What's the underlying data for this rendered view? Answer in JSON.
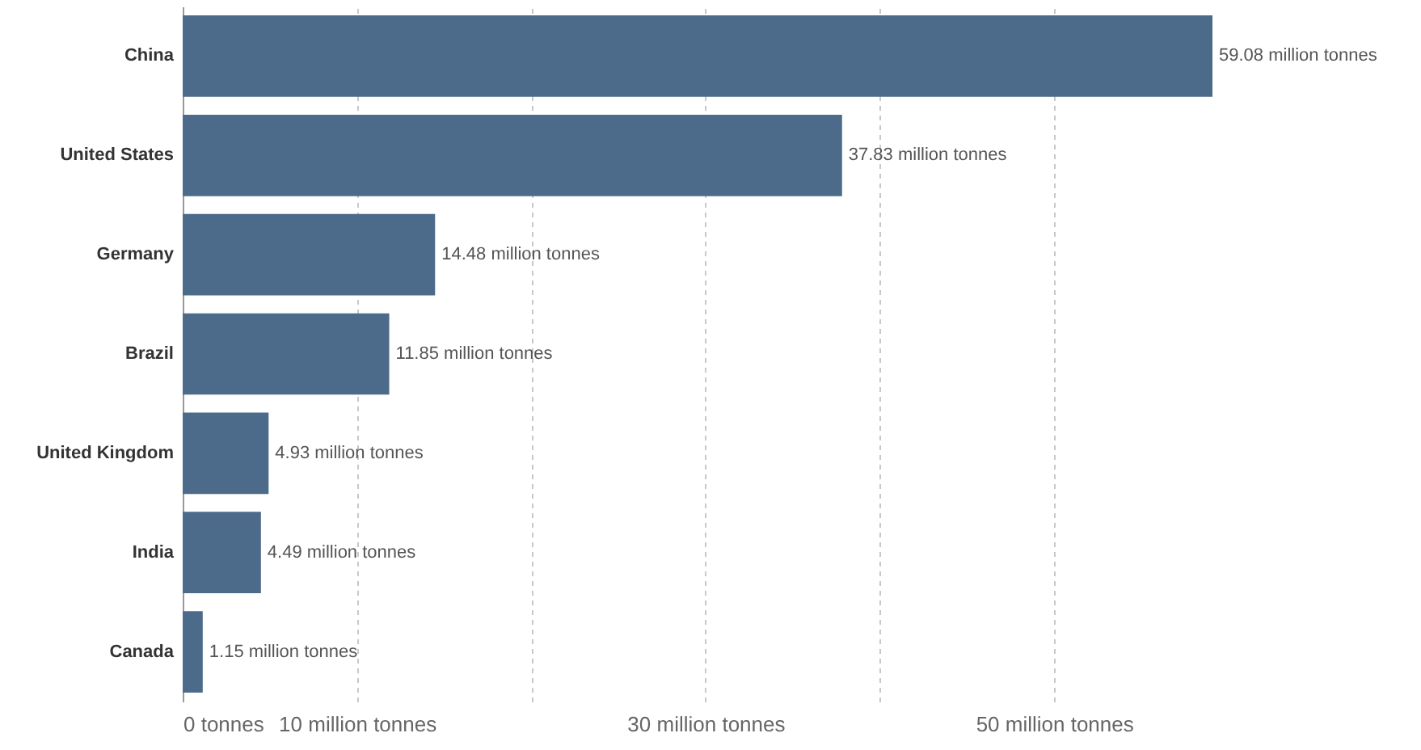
{
  "chart_data": {
    "type": "bar",
    "orientation": "horizontal",
    "categories": [
      "China",
      "United States",
      "Germany",
      "Brazil",
      "United Kingdom",
      "India",
      "Canada"
    ],
    "values": [
      59.08,
      37.83,
      14.48,
      11.85,
      4.93,
      4.49,
      1.15
    ],
    "value_labels": [
      "59.08 million tonnes",
      "37.83 million tonnes",
      "14.48 million tonnes",
      "11.85 million tonnes",
      "4.93 million tonnes",
      "4.49 million tonnes",
      "1.15 million tonnes"
    ],
    "color": "#4c6a8a",
    "xlim": [
      0,
      59.08
    ],
    "xticks": [
      {
        "value": 0,
        "label": "0 tonnes"
      },
      {
        "value": 10,
        "label": "10 million tonnes"
      },
      {
        "value": 20,
        "label": null
      },
      {
        "value": 30,
        "label": "30 million tonnes"
      },
      {
        "value": 40,
        "label": null
      },
      {
        "value": 50,
        "label": "50 million tonnes"
      }
    ],
    "grid": "x"
  }
}
